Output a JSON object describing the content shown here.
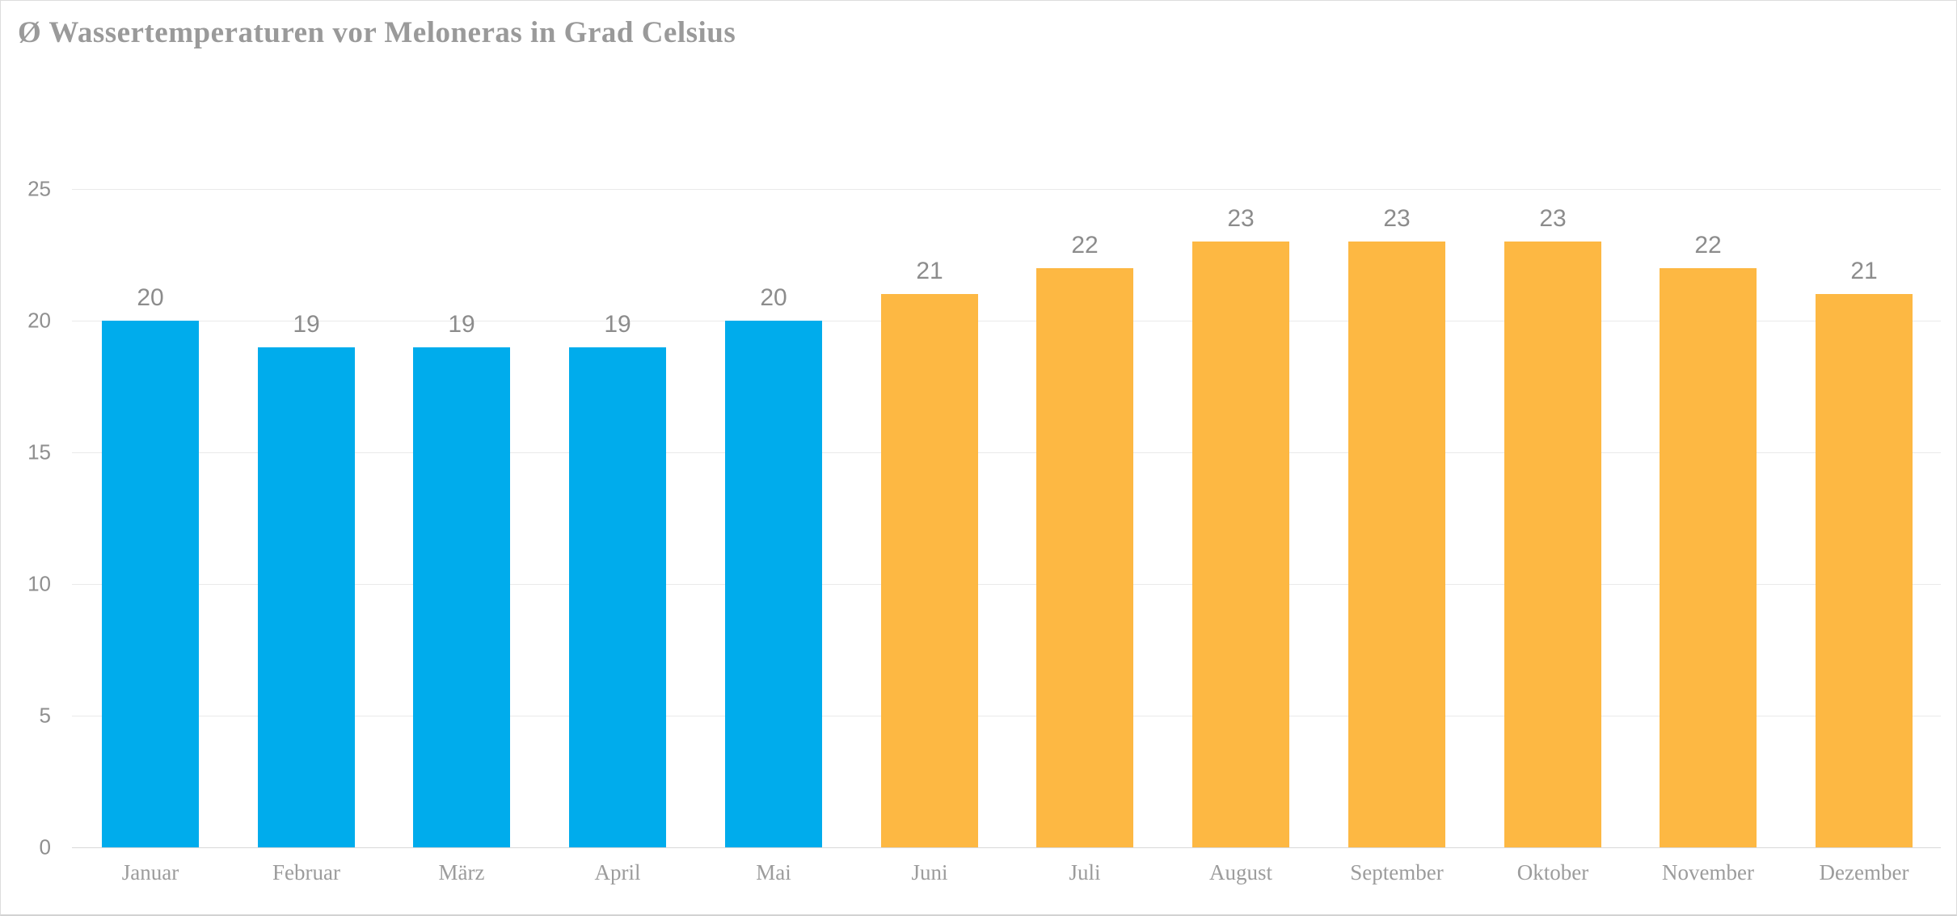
{
  "title": "Ø Wassertemperaturen vor Meloneras in Grad Celsius",
  "colors": {
    "bar_blue": "#00ACEC",
    "bar_orange": "#FDB843",
    "gridline": "#EAEAEA",
    "axis_line": "#D9D9D9",
    "title_text": "#9A9A9A",
    "value_label_text": "#8C8C8C",
    "axis_label_text": "#8F8F8F",
    "month_label_text": "#9C9C9C",
    "widget_border": "#DDDDDD",
    "background": "#FFFFFF"
  },
  "chart_data": {
    "type": "bar",
    "title": "Ø Wassertemperaturen vor Meloneras in Grad Celsius",
    "categories": [
      "Januar",
      "Februar",
      "März",
      "April",
      "Mai",
      "Juni",
      "Juli",
      "August",
      "September",
      "Oktober",
      "November",
      "Dezember"
    ],
    "values": [
      20,
      19,
      19,
      19,
      20,
      21,
      22,
      23,
      23,
      23,
      22,
      21
    ],
    "bar_colors": [
      "#00ACEC",
      "#00ACEC",
      "#00ACEC",
      "#00ACEC",
      "#00ACEC",
      "#FDB843",
      "#FDB843",
      "#FDB843",
      "#FDB843",
      "#FDB843",
      "#FDB843",
      "#FDB843"
    ],
    "data_labels": [
      20,
      19,
      19,
      19,
      20,
      21,
      22,
      23,
      23,
      23,
      22,
      21
    ],
    "xlabel": "",
    "ylabel": "",
    "ylim": [
      0,
      25
    ],
    "yticks": [
      0,
      5,
      10,
      15,
      20,
      25
    ],
    "grid": "horizontal",
    "legend": "none"
  }
}
